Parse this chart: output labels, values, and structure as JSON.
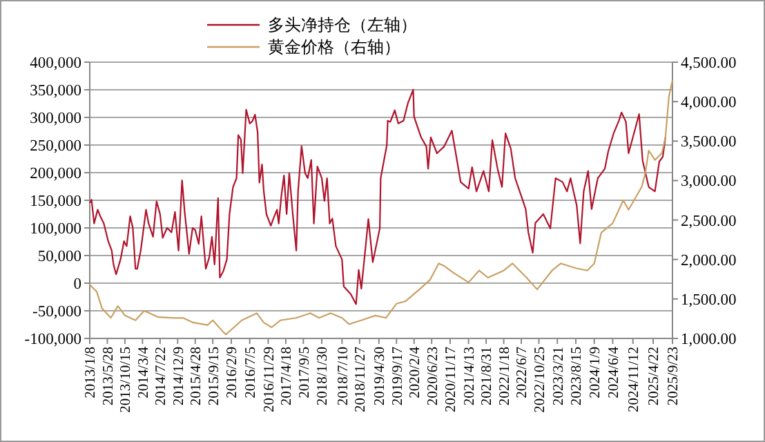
{
  "chart_data": {
    "type": "line",
    "legend": "top",
    "grid": "y",
    "line_style": "solid",
    "marker": "none",
    "xlim": [
      "2013-01-08",
      "2025-09-23"
    ],
    "xticks": [
      {
        "value": "2013-01-08",
        "label": "2013/1/8"
      },
      {
        "value": "2013-05-28",
        "label": "2013/5/28"
      },
      {
        "value": "2013-10-15",
        "label": "2013/10/15"
      },
      {
        "value": "2014-03-04",
        "label": "2014/3/4"
      },
      {
        "value": "2014-07-22",
        "label": "2014/7/22"
      },
      {
        "value": "2014-12-09",
        "label": "2014/12/9"
      },
      {
        "value": "2015-04-28",
        "label": "2015/4/28"
      },
      {
        "value": "2015-09-15",
        "label": "2015/9/15"
      },
      {
        "value": "2016-02-09",
        "label": "2016/2/9"
      },
      {
        "value": "2016-07-05",
        "label": "2016/7/5"
      },
      {
        "value": "2016-11-29",
        "label": "2016/11/29"
      },
      {
        "value": "2017-04-18",
        "label": "2017/4/18"
      },
      {
        "value": "2017-09-05",
        "label": "2017/9/5"
      },
      {
        "value": "2018-01-30",
        "label": "2018/1/30"
      },
      {
        "value": "2018-07-10",
        "label": "2018/7/10"
      },
      {
        "value": "2018-11-27",
        "label": "2018/11/27"
      },
      {
        "value": "2019-04-30",
        "label": "2019/4/30"
      },
      {
        "value": "2019-09-17",
        "label": "2019/9/17"
      },
      {
        "value": "2020-02-04",
        "label": "2020/2/4"
      },
      {
        "value": "2020-06-23",
        "label": "2020/6/23"
      },
      {
        "value": "2020-11-17",
        "label": "2020/11/17"
      },
      {
        "value": "2021-04-13",
        "label": "2021/4/13"
      },
      {
        "value": "2021-08-31",
        "label": "2021/8/31"
      },
      {
        "value": "2022-01-18",
        "label": "2022/1/18"
      },
      {
        "value": "2022-06-07",
        "label": "2022/6/7"
      },
      {
        "value": "2022-10-25",
        "label": "2022/10/25"
      },
      {
        "value": "2023-03-21",
        "label": "2023/3/21"
      },
      {
        "value": "2023-08-15",
        "label": "2023/8/15"
      },
      {
        "value": "2024-01-09",
        "label": "2024/1/9"
      },
      {
        "value": "2024-06-04",
        "label": "2024/6/4"
      },
      {
        "value": "2024-11-12",
        "label": "2024/11/12"
      },
      {
        "value": "2025-04-22",
        "label": "2025/4/22"
      },
      {
        "value": "2025-09-23",
        "label": "2025/9/23"
      }
    ],
    "ylim": [
      -100000,
      400000
    ],
    "yticks": [
      {
        "value": -100000,
        "label": "-100,000"
      },
      {
        "value": -50000,
        "label": "-50,000"
      },
      {
        "value": 0,
        "label": "0"
      },
      {
        "value": 50000,
        "label": "50,000"
      },
      {
        "value": 100000,
        "label": "100,000"
      },
      {
        "value": 150000,
        "label": "150,000"
      },
      {
        "value": 200000,
        "label": "200,000"
      },
      {
        "value": 250000,
        "label": "250,000"
      },
      {
        "value": 300000,
        "label": "300,000"
      },
      {
        "value": 350000,
        "label": "350,000"
      },
      {
        "value": 400000,
        "label": "400,000"
      }
    ],
    "y2lim": [
      1000,
      4500
    ],
    "y2ticks": [
      {
        "value": 1000,
        "label": "1,000.00"
      },
      {
        "value": 1500,
        "label": "1,500.00"
      },
      {
        "value": 2000,
        "label": "2,000.00"
      },
      {
        "value": 2500,
        "label": "2,500.00"
      },
      {
        "value": 3000,
        "label": "3,000.00"
      },
      {
        "value": 3500,
        "label": "3,500.00"
      },
      {
        "value": 4000,
        "label": "4,000.00"
      },
      {
        "value": 4500,
        "label": "4,500.00"
      }
    ],
    "series": [
      {
        "name": "多头净持仓（左轴）",
        "color": "#b0132b",
        "x": [
          "2013-01-08",
          "2013-01-22",
          "2013-02-12",
          "2013-03-12",
          "2013-04-02",
          "2013-04-30",
          "2013-06-04",
          "2013-07-02",
          "2013-07-16",
          "2013-08-06",
          "2013-09-10",
          "2013-10-08",
          "2013-10-29",
          "2013-11-26",
          "2013-12-17",
          "2014-01-07",
          "2014-01-21",
          "2014-02-18",
          "2014-03-18",
          "2014-04-01",
          "2014-04-22",
          "2014-05-27",
          "2014-06-24",
          "2014-07-22",
          "2014-08-12",
          "2014-09-16",
          "2014-10-21",
          "2014-11-18",
          "2014-12-16",
          "2015-01-13",
          "2015-02-03",
          "2015-03-10",
          "2015-04-07",
          "2015-04-28",
          "2015-05-26",
          "2015-06-16",
          "2015-07-21",
          "2015-08-18",
          "2015-09-08",
          "2015-09-29",
          "2015-10-27",
          "2015-11-10",
          "2015-12-08",
          "2016-01-05",
          "2016-01-26",
          "2016-02-23",
          "2016-03-22",
          "2016-04-05",
          "2016-04-26",
          "2016-05-10",
          "2016-06-07",
          "2016-07-05",
          "2016-07-26",
          "2016-08-16",
          "2016-09-06",
          "2016-09-20",
          "2016-10-11",
          "2016-10-25",
          "2016-11-15",
          "2016-12-20",
          "2017-01-10",
          "2017-02-07",
          "2017-02-21",
          "2017-03-14",
          "2017-04-04",
          "2017-04-25",
          "2017-05-16",
          "2017-06-13",
          "2017-07-11",
          "2017-07-25",
          "2017-08-22",
          "2017-09-19",
          "2017-10-10",
          "2017-11-07",
          "2017-11-28",
          "2017-12-26",
          "2018-01-30",
          "2018-02-20",
          "2018-03-13",
          "2018-04-03",
          "2018-04-24",
          "2018-05-22",
          "2018-07-10",
          "2018-07-24",
          "2018-09-18",
          "2018-10-30",
          "2018-11-20",
          "2018-12-11",
          "2019-02-05",
          "2019-03-12",
          "2019-05-07",
          "2019-05-14",
          "2019-07-02",
          "2019-07-09",
          "2019-07-30",
          "2019-09-03",
          "2019-10-01",
          "2019-11-12",
          "2019-12-17",
          "2020-01-28",
          "2020-02-04",
          "2020-03-31",
          "2020-05-12",
          "2020-05-26",
          "2020-06-16",
          "2020-08-04",
          "2020-09-29",
          "2020-12-01",
          "2020-12-29",
          "2021-02-09",
          "2021-04-13",
          "2021-05-11",
          "2021-06-15",
          "2021-08-10",
          "2021-09-21",
          "2021-10-19",
          "2021-11-30",
          "2022-01-04",
          "2022-02-01",
          "2022-03-15",
          "2022-04-19",
          "2022-06-14",
          "2022-07-12",
          "2022-08-02",
          "2022-09-06",
          "2022-09-27",
          "2022-10-25",
          "2022-11-29",
          "2023-01-24",
          "2023-03-07",
          "2023-05-02",
          "2023-06-06",
          "2023-07-04",
          "2023-08-22",
          "2023-09-19",
          "2023-10-17",
          "2023-11-21",
          "2023-12-19",
          "2024-02-06",
          "2024-04-02",
          "2024-04-30",
          "2024-06-11",
          "2024-07-23",
          "2024-08-13",
          "2024-09-17",
          "2024-10-08",
          "2024-11-26",
          "2024-12-31",
          "2025-01-28",
          "2025-03-18",
          "2025-05-06",
          "2025-06-10",
          "2025-07-08",
          "2025-07-29"
        ],
        "values": [
          145000,
          151000,
          108000,
          133000,
          121000,
          108000,
          76000,
          59000,
          34000,
          16000,
          43000,
          76000,
          67000,
          121000,
          100000,
          26000,
          26000,
          59000,
          108000,
          133000,
          108000,
          84000,
          148000,
          125000,
          82000,
          100000,
          92000,
          129000,
          59000,
          186000,
          129000,
          53000,
          100000,
          96000,
          71000,
          121000,
          26000,
          47000,
          84000,
          34000,
          154000,
          10000,
          22000,
          43000,
          125000,
          174000,
          190000,
          268000,
          260000,
          199000,
          314000,
          289000,
          293000,
          305000,
          273000,
          182000,
          215000,
          166000,
          125000,
          104000,
          117000,
          133000,
          108000,
          158000,
          195000,
          125000,
          199000,
          125000,
          59000,
          166000,
          248000,
          199000,
          190000,
          223000,
          108000,
          211000,
          190000,
          149000,
          190000,
          108000,
          117000,
          67000,
          43000,
          -6000,
          -20000,
          -38000,
          24000,
          -10000,
          116000,
          38000,
          99000,
          190000,
          250000,
          294000,
          292000,
          313000,
          289000,
          294000,
          326000,
          350000,
          301000,
          264000,
          247000,
          207000,
          264000,
          235000,
          247000,
          276000,
          239000,
          183000,
          171000,
          210000,
          166000,
          203000,
          166000,
          259000,
          207000,
          174000,
          271000,
          244000,
          190000,
          153000,
          134000,
          92000,
          55000,
          109000,
          116000,
          125000,
          99000,
          190000,
          183000,
          166000,
          190000,
          141000,
          72000,
          166000,
          203000,
          134000,
          190000,
          207000,
          239000,
          271000,
          294000,
          309000,
          292000,
          235000,
          276000,
          306000,
          222000,
          174000,
          166000,
          220000,
          229000,
          264000
        ]
      },
      {
        "name": "黄金价格（右轴）",
        "color": "#c9a063",
        "axis": "y2",
        "x": [
          "2013-01-08",
          "2013-03-05",
          "2013-04-16",
          "2013-06-25",
          "2013-08-20",
          "2013-10-15",
          "2014-01-07",
          "2014-03-18",
          "2014-07-08",
          "2014-11-11",
          "2015-01-20",
          "2015-04-14",
          "2015-08-04",
          "2015-09-15",
          "2015-12-08",
          "2015-12-29",
          "2016-05-03",
          "2016-08-30",
          "2016-10-25",
          "2016-12-27",
          "2017-03-07",
          "2017-07-11",
          "2017-10-31",
          "2018-01-09",
          "2018-04-10",
          "2018-07-10",
          "2018-09-04",
          "2018-12-11",
          "2019-04-02",
          "2019-06-25",
          "2019-09-17",
          "2019-11-26",
          "2020-03-17",
          "2020-06-09",
          "2020-08-18",
          "2020-09-29",
          "2020-12-15",
          "2021-04-13",
          "2021-07-06",
          "2021-09-14",
          "2022-01-18",
          "2022-03-29",
          "2022-07-19",
          "2022-10-11",
          "2023-02-07",
          "2023-04-18",
          "2023-08-15",
          "2023-11-14",
          "2024-01-09",
          "2024-03-05",
          "2024-06-04",
          "2024-08-27",
          "2024-10-08",
          "2025-01-21",
          "2025-02-18",
          "2025-03-18",
          "2025-05-06",
          "2025-07-01",
          "2025-07-29",
          "2025-08-26",
          "2025-09-23"
        ],
        "values": [
          1680,
          1590,
          1380,
          1260,
          1410,
          1290,
          1230,
          1350,
          1270,
          1260,
          1260,
          1200,
          1170,
          1230,
          1080,
          1050,
          1230,
          1320,
          1200,
          1140,
          1230,
          1260,
          1320,
          1260,
          1320,
          1260,
          1180,
          1230,
          1290,
          1260,
          1440,
          1470,
          1620,
          1740,
          1950,
          1920,
          1830,
          1710,
          1860,
          1770,
          1860,
          1950,
          1770,
          1620,
          1860,
          1950,
          1890,
          1860,
          1950,
          2340,
          2460,
          2750,
          2630,
          2920,
          3090,
          3380,
          3260,
          3350,
          3550,
          4070,
          4270
        ]
      }
    ]
  }
}
